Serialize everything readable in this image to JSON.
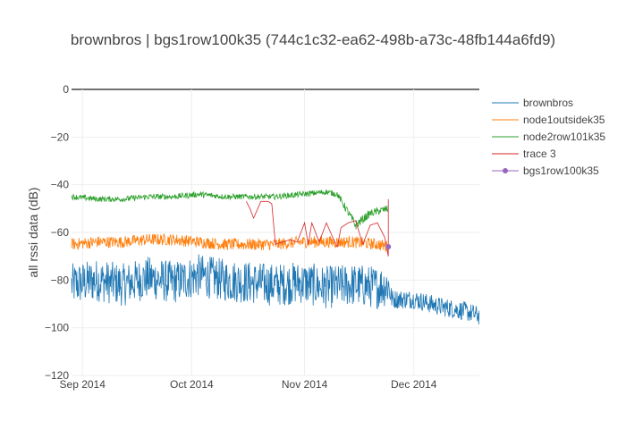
{
  "chart_data": {
    "type": "line",
    "title": "brownbros | bgs1row100k35 (744c1c32-ea62-498b-a73c-48fb144a6fd9)",
    "xlabel": "",
    "ylabel": "all rssi data (dB)",
    "xlim": [
      "2014-08-29",
      "2014-12-19"
    ],
    "ylim": [
      -120,
      0
    ],
    "x_ticks": [
      {
        "date": "2014-09-01",
        "label": "Sep 2014"
      },
      {
        "date": "2014-10-01",
        "label": "Oct 2014"
      },
      {
        "date": "2014-11-01",
        "label": "Nov 2014"
      },
      {
        "date": "2014-12-01",
        "label": "Dec 2014"
      }
    ],
    "y_ticks": [
      0,
      -20,
      -40,
      -60,
      -80,
      -100,
      -120
    ],
    "grid": true,
    "legend_position": "right",
    "series": [
      {
        "name": "brownbros",
        "color": "#1f77b4",
        "mode": "lines",
        "x": [
          "2014-08-29",
          "2014-09-05",
          "2014-09-12",
          "2014-09-19",
          "2014-09-26",
          "2014-10-03",
          "2014-10-10",
          "2014-10-17",
          "2014-10-24",
          "2014-10-31",
          "2014-11-07",
          "2014-11-14",
          "2014-11-21",
          "2014-11-24",
          "2014-11-25",
          "2014-12-01",
          "2014-12-08",
          "2014-12-15",
          "2014-12-19"
        ],
        "y": [
          -82,
          -80,
          -82,
          -79,
          -81,
          -78,
          -80,
          -81,
          -82,
          -81,
          -83,
          -82,
          -83,
          -82,
          -88,
          -88,
          -91,
          -93,
          -95
        ],
        "amplitude": [
          9,
          9,
          9,
          9,
          9,
          9,
          9,
          9,
          9,
          9,
          9,
          9,
          9,
          9,
          4,
          4,
          4,
          4,
          4
        ]
      },
      {
        "name": "node1outsidek35",
        "color": "#ff7f0e",
        "mode": "lines",
        "x": [
          "2014-08-29",
          "2014-09-05",
          "2014-09-12",
          "2014-09-19",
          "2014-09-26",
          "2014-10-03",
          "2014-10-10",
          "2014-10-17",
          "2014-10-24",
          "2014-10-31",
          "2014-11-07",
          "2014-11-14",
          "2014-11-21",
          "2014-11-24"
        ],
        "y": [
          -65,
          -64,
          -64,
          -63,
          -63,
          -64,
          -65,
          -65,
          -65,
          -64,
          -64,
          -64,
          -65,
          -66
        ],
        "amplitude": [
          2.5,
          2.5,
          2.5,
          2.5,
          2.5,
          2.5,
          2.5,
          2.5,
          2.5,
          2.5,
          2.5,
          2.5,
          2.5,
          2.5
        ]
      },
      {
        "name": "node2row101k35",
        "color": "#2ca02c",
        "mode": "lines",
        "x": [
          "2014-08-29",
          "2014-09-05",
          "2014-09-12",
          "2014-09-19",
          "2014-09-26",
          "2014-10-03",
          "2014-10-10",
          "2014-10-17",
          "2014-10-24",
          "2014-10-31",
          "2014-11-07",
          "2014-11-10",
          "2014-11-12",
          "2014-11-15",
          "2014-11-19",
          "2014-11-24"
        ],
        "y": [
          -45,
          -46,
          -46,
          -45,
          -45,
          -44,
          -45,
          -45,
          -45,
          -44,
          -43,
          -44,
          -49,
          -57,
          -52,
          -50
        ],
        "amplitude": [
          1.2,
          1.2,
          1.2,
          1.2,
          1.2,
          1.2,
          1.2,
          1.2,
          1.2,
          1.2,
          1.2,
          1.2,
          1.6,
          2,
          1.6,
          1.6
        ]
      },
      {
        "name": "trace 3",
        "color": "#d62728",
        "mode": "lines",
        "x": [
          "2014-10-16",
          "2014-10-17",
          "2014-10-18",
          "2014-10-20",
          "2014-10-22",
          "2014-10-23",
          "2014-10-24",
          "2014-10-26",
          "2014-10-28",
          "2014-10-30",
          "2014-11-01",
          "2014-11-02",
          "2014-11-03",
          "2014-11-05",
          "2014-11-07",
          "2014-11-09",
          "2014-11-10",
          "2014-11-11",
          "2014-11-13",
          "2014-11-15",
          "2014-11-17",
          "2014-11-19",
          "2014-11-21",
          "2014-11-23",
          "2014-11-24",
          "2014-11-24"
        ],
        "y": [
          -47,
          -50,
          -54,
          -47,
          -47,
          -48,
          -65,
          -64,
          -63,
          -64,
          -56,
          -65,
          -56,
          -64,
          -56,
          -63,
          -66,
          -58,
          -56,
          -55,
          -65,
          -57,
          -56,
          -62,
          -70,
          -46
        ]
      },
      {
        "name": "bgs1row100k35",
        "color": "#9467bd",
        "mode": "markers",
        "x": [
          "2014-11-24"
        ],
        "y": [
          -66
        ]
      }
    ]
  }
}
